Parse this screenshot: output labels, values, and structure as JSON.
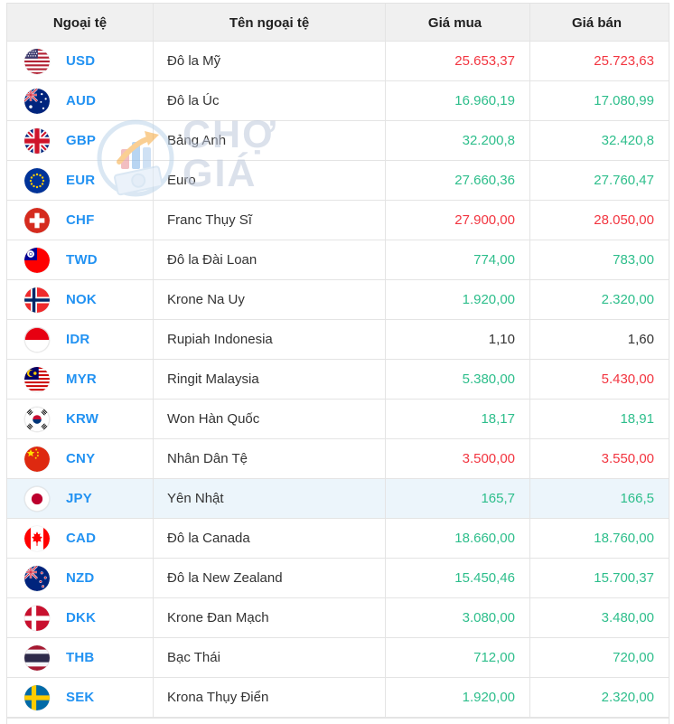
{
  "watermark": {
    "text": "CHỢ GIÁ"
  },
  "colors": {
    "up_green": "#2dbe8b",
    "down_red": "#f23540",
    "neutral": "#333333",
    "code_blue": "#2292f2",
    "header_bg": "#f0f0f0",
    "highlight_row_bg": "#ecf5fb"
  },
  "table": {
    "columns": [
      "Ngoại tệ",
      "Tên ngoại tệ",
      "Giá mua",
      "Giá bán"
    ],
    "rows": [
      {
        "code": "USD",
        "flag": "us-flag",
        "name": "Đô la Mỹ",
        "buy": "25.653,37",
        "buy_color": "red",
        "sell": "25.723,63",
        "sell_color": "red",
        "highlight": false
      },
      {
        "code": "AUD",
        "flag": "australia-flag",
        "name": "Đô la Úc",
        "buy": "16.960,19",
        "buy_color": "green",
        "sell": "17.080,99",
        "sell_color": "green",
        "highlight": false
      },
      {
        "code": "GBP",
        "flag": "uk-flag",
        "name": "Bảng Anh",
        "buy": "32.200,8",
        "buy_color": "green",
        "sell": "32.420,8",
        "sell_color": "green",
        "highlight": false
      },
      {
        "code": "EUR",
        "flag": "eu-flag",
        "name": "Euro",
        "buy": "27.660,36",
        "buy_color": "green",
        "sell": "27.760,47",
        "sell_color": "green",
        "highlight": false
      },
      {
        "code": "CHF",
        "flag": "switzerland-flag",
        "name": "Franc Thụy Sĩ",
        "buy": "27.900,00",
        "buy_color": "red",
        "sell": "28.050,00",
        "sell_color": "red",
        "highlight": false
      },
      {
        "code": "TWD",
        "flag": "taiwan-flag",
        "name": "Đô la Đài Loan",
        "buy": "774,00",
        "buy_color": "green",
        "sell": "783,00",
        "sell_color": "green",
        "highlight": false
      },
      {
        "code": "NOK",
        "flag": "norway-flag",
        "name": "Krone Na Uy",
        "buy": "1.920,00",
        "buy_color": "green",
        "sell": "2.320,00",
        "sell_color": "green",
        "highlight": false
      },
      {
        "code": "IDR",
        "flag": "indonesia-flag",
        "name": "Rupiah Indonesia",
        "buy": "1,10",
        "buy_color": "neutral",
        "sell": "1,60",
        "sell_color": "neutral",
        "highlight": false
      },
      {
        "code": "MYR",
        "flag": "malaysia-flag",
        "name": "Ringit Malaysia",
        "buy": "5.380,00",
        "buy_color": "green",
        "sell": "5.430,00",
        "sell_color": "red",
        "highlight": false
      },
      {
        "code": "KRW",
        "flag": "south-korea-flag",
        "name": "Won Hàn Quốc",
        "buy": "18,17",
        "buy_color": "green",
        "sell": "18,91",
        "sell_color": "green",
        "highlight": false
      },
      {
        "code": "CNY",
        "flag": "china-flag",
        "name": "Nhân Dân Tệ",
        "buy": "3.500,00",
        "buy_color": "red",
        "sell": "3.550,00",
        "sell_color": "red",
        "highlight": false
      },
      {
        "code": "JPY",
        "flag": "japan-flag",
        "name": "Yên Nhật",
        "buy": "165,7",
        "buy_color": "green",
        "sell": "166,5",
        "sell_color": "green",
        "highlight": true
      },
      {
        "code": "CAD",
        "flag": "canada-flag",
        "name": "Đô la Canada",
        "buy": "18.660,00",
        "buy_color": "green",
        "sell": "18.760,00",
        "sell_color": "green",
        "highlight": false
      },
      {
        "code": "NZD",
        "flag": "new-zealand-flag",
        "name": "Đô la New Zealand",
        "buy": "15.450,46",
        "buy_color": "green",
        "sell": "15.700,37",
        "sell_color": "green",
        "highlight": false
      },
      {
        "code": "DKK",
        "flag": "denmark-flag",
        "name": "Krone Đan Mạch",
        "buy": "3.080,00",
        "buy_color": "green",
        "sell": "3.480,00",
        "sell_color": "green",
        "highlight": false
      },
      {
        "code": "THB",
        "flag": "thailand-flag",
        "name": "Bạc Thái",
        "buy": "712,00",
        "buy_color": "green",
        "sell": "720,00",
        "sell_color": "green",
        "highlight": false
      },
      {
        "code": "SEK",
        "flag": "sweden-flag",
        "name": "Krona Thụy Điển",
        "buy": "1.920,00",
        "buy_color": "green",
        "sell": "2.320,00",
        "sell_color": "green",
        "highlight": false
      }
    ]
  }
}
